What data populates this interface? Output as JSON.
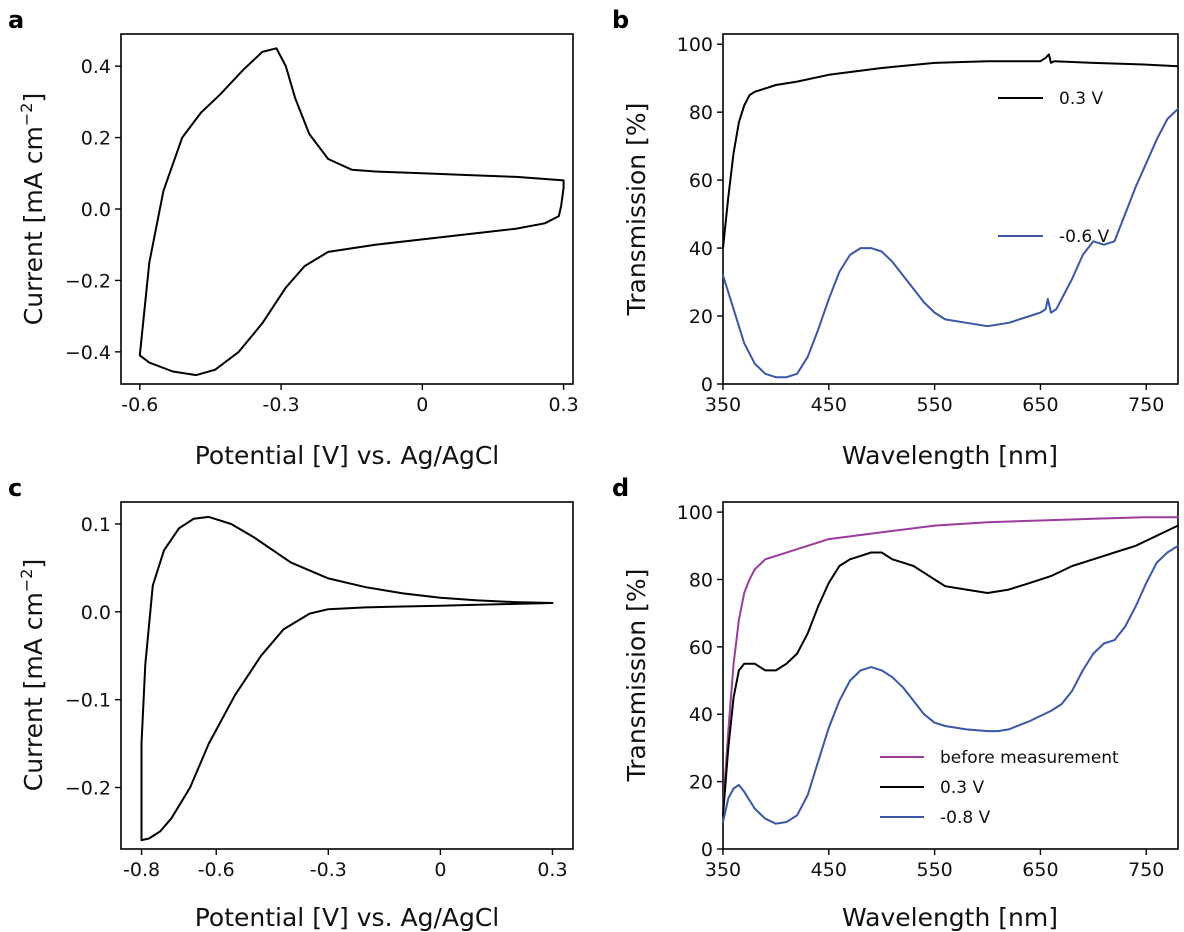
{
  "chart_data": [
    {
      "panel": "a",
      "type": "line",
      "xlabel": "Potential [V] vs. Ag/AgCl",
      "ylabel": "Current [mA cm",
      "ylabel_exp": "−2",
      "ylabel_close": "]",
      "xlim": [
        -0.64,
        0.32
      ],
      "ylim": [
        -0.49,
        0.49
      ],
      "xticks": [
        -0.6,
        -0.3,
        0,
        0.3
      ],
      "xticklabels": [
        "-0.6",
        "-0.3",
        "0",
        "0.3"
      ],
      "yticks": [
        -0.4,
        -0.2,
        0.0,
        0.2,
        0.4
      ],
      "yticklabels": [
        "−0.4",
        "−0.2",
        "0.0",
        "0.2",
        "0.4"
      ],
      "legend": null,
      "series": [
        {
          "color": "#000000",
          "points": [
            [
              0.3,
              0.08
            ],
            [
              0.2,
              0.09
            ],
            [
              0.1,
              0.095
            ],
            [
              0.0,
              0.1
            ],
            [
              -0.1,
              0.105
            ],
            [
              -0.15,
              0.11
            ],
            [
              -0.2,
              0.14
            ],
            [
              -0.24,
              0.21
            ],
            [
              -0.27,
              0.31
            ],
            [
              -0.29,
              0.4
            ],
            [
              -0.31,
              0.45
            ],
            [
              -0.34,
              0.44
            ],
            [
              -0.38,
              0.39
            ],
            [
              -0.43,
              0.32
            ],
            [
              -0.47,
              0.27
            ],
            [
              -0.51,
              0.2
            ],
            [
              -0.55,
              0.05
            ],
            [
              -0.58,
              -0.15
            ],
            [
              -0.6,
              -0.41
            ],
            [
              -0.58,
              -0.43
            ],
            [
              -0.53,
              -0.455
            ],
            [
              -0.48,
              -0.465
            ],
            [
              -0.44,
              -0.45
            ],
            [
              -0.39,
              -0.4
            ],
            [
              -0.34,
              -0.32
            ],
            [
              -0.29,
              -0.22
            ],
            [
              -0.25,
              -0.16
            ],
            [
              -0.2,
              -0.12
            ],
            [
              -0.1,
              -0.1
            ],
            [
              0.0,
              -0.085
            ],
            [
              0.1,
              -0.07
            ],
            [
              0.2,
              -0.055
            ],
            [
              0.26,
              -0.04
            ],
            [
              0.29,
              -0.02
            ],
            [
              0.295,
              0.01
            ],
            [
              0.3,
              0.06
            ],
            [
              0.3,
              0.08
            ]
          ]
        }
      ]
    },
    {
      "panel": "b",
      "type": "line",
      "xlabel": "Wavelength [nm]",
      "ylabel": "Transmission [%]",
      "xlim": [
        350,
        780
      ],
      "ylim": [
        0,
        103
      ],
      "xticks": [
        350,
        450,
        550,
        650,
        750
      ],
      "xticklabels": [
        "350",
        "450",
        "550",
        "650",
        "750"
      ],
      "yticks": [
        0,
        20,
        40,
        60,
        80,
        100
      ],
      "yticklabels": [
        "0",
        "20",
        "40",
        "60",
        "80",
        "100"
      ],
      "legend": "inline",
      "series": [
        {
          "name": "0.3 V",
          "color": "#000000",
          "points": [
            [
              350,
              40
            ],
            [
              355,
              55
            ],
            [
              360,
              68
            ],
            [
              365,
              77
            ],
            [
              370,
              82
            ],
            [
              375,
              85
            ],
            [
              380,
              86
            ],
            [
              390,
              87
            ],
            [
              400,
              88
            ],
            [
              420,
              89
            ],
            [
              450,
              91
            ],
            [
              500,
              93
            ],
            [
              550,
              94.5
            ],
            [
              600,
              95
            ],
            [
              650,
              95
            ],
            [
              655,
              96
            ],
            [
              658,
              97
            ],
            [
              660,
              94.5
            ],
            [
              663,
              95
            ],
            [
              700,
              94.5
            ],
            [
              750,
              94
            ],
            [
              780,
              93.5
            ]
          ]
        },
        {
          "name": "-0.6 V",
          "color": "#3a57a8",
          "points": [
            [
              350,
              32
            ],
            [
              360,
              22
            ],
            [
              370,
              12
            ],
            [
              380,
              6
            ],
            [
              390,
              3
            ],
            [
              400,
              2
            ],
            [
              410,
              2
            ],
            [
              420,
              3
            ],
            [
              430,
              8
            ],
            [
              440,
              16
            ],
            [
              450,
              25
            ],
            [
              460,
              33
            ],
            [
              470,
              38
            ],
            [
              480,
              40
            ],
            [
              490,
              40
            ],
            [
              500,
              39
            ],
            [
              510,
              36
            ],
            [
              520,
              32
            ],
            [
              530,
              28
            ],
            [
              540,
              24
            ],
            [
              550,
              21
            ],
            [
              560,
              19
            ],
            [
              580,
              18
            ],
            [
              600,
              17
            ],
            [
              620,
              18
            ],
            [
              640,
              20
            ],
            [
              650,
              21
            ],
            [
              655,
              22
            ],
            [
              657,
              25
            ],
            [
              660,
              21
            ],
            [
              665,
              22
            ],
            [
              670,
              25
            ],
            [
              680,
              31
            ],
            [
              690,
              38
            ],
            [
              700,
              42
            ],
            [
              710,
              41
            ],
            [
              720,
              42
            ],
            [
              730,
              50
            ],
            [
              740,
              58
            ],
            [
              750,
              65
            ],
            [
              760,
              72
            ],
            [
              770,
              78
            ],
            [
              780,
              81
            ]
          ]
        }
      ]
    },
    {
      "panel": "c",
      "type": "line",
      "xlabel": "Potential [V] vs. Ag/AgCl",
      "ylabel": "Current [mA cm",
      "ylabel_exp": "−2",
      "ylabel_close": "]",
      "xlim": [
        -0.855,
        0.355
      ],
      "ylim": [
        -0.27,
        0.125
      ],
      "xticks": [
        -0.8,
        -0.6,
        -0.3,
        0,
        0.3
      ],
      "xticklabels": [
        "-0.8",
        "-0.6",
        "-0.3",
        "0",
        "0.3"
      ],
      "yticks": [
        -0.2,
        -0.1,
        0.0,
        0.1
      ],
      "yticklabels": [
        "−0.2",
        "−0.1",
        "0.0",
        "0.1"
      ],
      "legend": null,
      "series": [
        {
          "color": "#000000",
          "points": [
            [
              0.3,
              0.01
            ],
            [
              0.2,
              0.011
            ],
            [
              0.1,
              0.013
            ],
            [
              0.0,
              0.016
            ],
            [
              -0.1,
              0.021
            ],
            [
              -0.2,
              0.028
            ],
            [
              -0.3,
              0.038
            ],
            [
              -0.4,
              0.056
            ],
            [
              -0.5,
              0.085
            ],
            [
              -0.56,
              0.1
            ],
            [
              -0.62,
              0.108
            ],
            [
              -0.66,
              0.106
            ],
            [
              -0.7,
              0.095
            ],
            [
              -0.74,
              0.07
            ],
            [
              -0.77,
              0.03
            ],
            [
              -0.79,
              -0.06
            ],
            [
              -0.8,
              -0.15
            ],
            [
              -0.8,
              -0.26
            ],
            [
              -0.78,
              -0.258
            ],
            [
              -0.75,
              -0.25
            ],
            [
              -0.72,
              -0.235
            ],
            [
              -0.67,
              -0.2
            ],
            [
              -0.62,
              -0.15
            ],
            [
              -0.55,
              -0.095
            ],
            [
              -0.48,
              -0.05
            ],
            [
              -0.42,
              -0.02
            ],
            [
              -0.35,
              -0.002
            ],
            [
              -0.3,
              0.003
            ],
            [
              -0.2,
              0.005
            ],
            [
              -0.1,
              0.006
            ],
            [
              0.0,
              0.007
            ],
            [
              0.1,
              0.008
            ],
            [
              0.2,
              0.009
            ],
            [
              0.3,
              0.01
            ]
          ]
        }
      ]
    },
    {
      "panel": "d",
      "type": "line",
      "xlabel": "Wavelength [nm]",
      "ylabel": "Transmission [%]",
      "xlim": [
        350,
        780
      ],
      "ylim": [
        0,
        103
      ],
      "xticks": [
        350,
        450,
        550,
        650,
        750
      ],
      "xticklabels": [
        "350",
        "450",
        "550",
        "650",
        "750"
      ],
      "yticks": [
        0,
        20,
        40,
        60,
        80,
        100
      ],
      "yticklabels": [
        "0",
        "20",
        "40",
        "60",
        "80",
        "100"
      ],
      "legend": "lower-right",
      "series": [
        {
          "name": "before measurement",
          "color": "#9b3c9b",
          "points": [
            [
              350,
              12
            ],
            [
              355,
              35
            ],
            [
              360,
              55
            ],
            [
              365,
              68
            ],
            [
              370,
              76
            ],
            [
              375,
              80
            ],
            [
              380,
              83
            ],
            [
              390,
              86
            ],
            [
              400,
              87
            ],
            [
              420,
              89
            ],
            [
              450,
              92
            ],
            [
              500,
              94
            ],
            [
              550,
              96
            ],
            [
              600,
              97
            ],
            [
              650,
              97.5
            ],
            [
              700,
              98
            ],
            [
              750,
              98.5
            ],
            [
              780,
              98.5
            ]
          ]
        },
        {
          "name": "0.3 V",
          "color": "#000000",
          "points": [
            [
              350,
              10
            ],
            [
              355,
              30
            ],
            [
              360,
              45
            ],
            [
              365,
              53
            ],
            [
              370,
              55
            ],
            [
              380,
              55
            ],
            [
              390,
              53
            ],
            [
              400,
              53
            ],
            [
              410,
              55
            ],
            [
              420,
              58
            ],
            [
              430,
              64
            ],
            [
              440,
              72
            ],
            [
              450,
              79
            ],
            [
              460,
              84
            ],
            [
              470,
              86
            ],
            [
              480,
              87
            ],
            [
              490,
              88
            ],
            [
              500,
              88
            ],
            [
              510,
              86
            ],
            [
              520,
              85
            ],
            [
              530,
              84
            ],
            [
              540,
              82
            ],
            [
              550,
              80
            ],
            [
              560,
              78
            ],
            [
              580,
              77
            ],
            [
              600,
              76
            ],
            [
              620,
              77
            ],
            [
              640,
              79
            ],
            [
              660,
              81
            ],
            [
              680,
              84
            ],
            [
              700,
              86
            ],
            [
              720,
              88
            ],
            [
              740,
              90
            ],
            [
              760,
              93
            ],
            [
              780,
              96
            ]
          ]
        },
        {
          "name": "-0.8 V",
          "color": "#3a57a8",
          "points": [
            [
              350,
              8
            ],
            [
              355,
              15
            ],
            [
              360,
              18
            ],
            [
              365,
              19
            ],
            [
              370,
              17
            ],
            [
              380,
              12
            ],
            [
              390,
              9
            ],
            [
              400,
              7.5
            ],
            [
              410,
              8
            ],
            [
              420,
              10
            ],
            [
              430,
              16
            ],
            [
              440,
              26
            ],
            [
              450,
              36
            ],
            [
              460,
              44
            ],
            [
              470,
              50
            ],
            [
              480,
              53
            ],
            [
              490,
              54
            ],
            [
              500,
              53
            ],
            [
              510,
              51
            ],
            [
              520,
              48
            ],
            [
              530,
              44
            ],
            [
              540,
              40
            ],
            [
              550,
              37.5
            ],
            [
              560,
              36.5
            ],
            [
              580,
              35.5
            ],
            [
              600,
              35
            ],
            [
              610,
              35
            ],
            [
              620,
              35.5
            ],
            [
              640,
              38
            ],
            [
              660,
              41
            ],
            [
              670,
              43
            ],
            [
              680,
              47
            ],
            [
              690,
              53
            ],
            [
              700,
              58
            ],
            [
              710,
              61
            ],
            [
              720,
              62
            ],
            [
              730,
              66
            ],
            [
              740,
              72
            ],
            [
              750,
              79
            ],
            [
              760,
              85
            ],
            [
              770,
              88
            ],
            [
              780,
              90
            ]
          ]
        }
      ]
    }
  ]
}
